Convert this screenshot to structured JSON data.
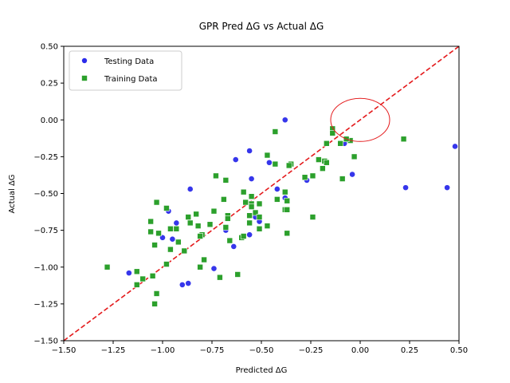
{
  "chart_data": {
    "type": "scatter",
    "title": "GPR Pred ΔG vs Actual ΔG",
    "xlabel": "Predicted ΔG",
    "ylabel": "Actual ΔG",
    "xlim": [
      -1.5,
      0.5
    ],
    "ylim": [
      -1.5,
      0.5
    ],
    "xticks": [
      "-1.50",
      "-1.25",
      "-1.00",
      "-0.75",
      "-0.50",
      "-0.25",
      "0.00",
      "0.25",
      "0.50"
    ],
    "yticks": [
      "-1.50",
      "-1.25",
      "-1.00",
      "-0.75",
      "-0.50",
      "-0.25",
      "0.00",
      "0.25",
      "0.50"
    ],
    "grid": false,
    "legend_position": "top-left",
    "series": [
      {
        "name": "Testing Data",
        "marker": "circle",
        "color": "#2b2bea",
        "points": [
          [
            -0.38,
            0.0
          ],
          [
            -0.46,
            -0.29
          ],
          [
            -0.56,
            -0.21
          ],
          [
            -0.63,
            -0.27
          ],
          [
            -0.55,
            -0.4
          ],
          [
            -0.42,
            -0.47
          ],
          [
            -0.27,
            -0.41
          ],
          [
            -0.08,
            -0.16
          ],
          [
            -0.04,
            -0.37
          ],
          [
            0.48,
            -0.18
          ],
          [
            0.23,
            -0.46
          ],
          [
            0.44,
            -0.46
          ],
          [
            -0.38,
            -0.53
          ],
          [
            -0.53,
            -0.66
          ],
          [
            -0.51,
            -0.69
          ],
          [
            -0.56,
            -0.78
          ],
          [
            -0.68,
            -0.75
          ],
          [
            -0.64,
            -0.86
          ],
          [
            -0.74,
            -1.01
          ],
          [
            -0.86,
            -0.47
          ],
          [
            -0.97,
            -0.62
          ],
          [
            -0.93,
            -0.7
          ],
          [
            -1.0,
            -0.8
          ],
          [
            -0.95,
            -0.81
          ],
          [
            -0.9,
            -1.12
          ],
          [
            -0.87,
            -1.11
          ],
          [
            -1.17,
            -1.04
          ]
        ]
      },
      {
        "name": "Training Data",
        "marker": "square",
        "color": "#2ca02c",
        "points": [
          [
            -0.43,
            -0.08
          ],
          [
            -0.14,
            -0.06
          ],
          [
            -0.14,
            -0.09
          ],
          [
            -0.1,
            -0.16
          ],
          [
            -0.17,
            -0.16
          ],
          [
            -0.05,
            -0.14
          ],
          [
            -0.07,
            -0.13
          ],
          [
            0.22,
            -0.13
          ],
          [
            -0.03,
            -0.25
          ],
          [
            -0.21,
            -0.27
          ],
          [
            -0.18,
            -0.28
          ],
          [
            -0.17,
            -0.29
          ],
          [
            -0.19,
            -0.33
          ],
          [
            -0.24,
            -0.38
          ],
          [
            -0.28,
            -0.39
          ],
          [
            -0.09,
            -0.4
          ],
          [
            -0.35,
            -0.3
          ],
          [
            -0.43,
            -0.3
          ],
          [
            -0.47,
            -0.24
          ],
          [
            -0.36,
            -0.31
          ],
          [
            -0.73,
            -0.38
          ],
          [
            -0.68,
            -0.41
          ],
          [
            -0.59,
            -0.49
          ],
          [
            -0.55,
            -0.52
          ],
          [
            -0.38,
            -0.49
          ],
          [
            -0.42,
            -0.54
          ],
          [
            -0.37,
            -0.55
          ],
          [
            -0.38,
            -0.61
          ],
          [
            -0.37,
            -0.61
          ],
          [
            -0.51,
            -0.57
          ],
          [
            -0.55,
            -0.57
          ],
          [
            -0.58,
            -0.56
          ],
          [
            -0.55,
            -0.59
          ],
          [
            -0.53,
            -0.63
          ],
          [
            -0.51,
            -0.66
          ],
          [
            -0.56,
            -0.65
          ],
          [
            -0.51,
            -0.74
          ],
          [
            -0.47,
            -0.72
          ],
          [
            -0.56,
            -0.7
          ],
          [
            -0.6,
            -0.8
          ],
          [
            -0.59,
            -0.79
          ],
          [
            -0.62,
            -1.05
          ],
          [
            -0.24,
            -0.66
          ],
          [
            -0.37,
            -0.77
          ],
          [
            -0.69,
            -0.54
          ],
          [
            -0.67,
            -0.65
          ],
          [
            -0.67,
            -0.67
          ],
          [
            -0.68,
            -0.73
          ],
          [
            -0.66,
            -0.82
          ],
          [
            -0.74,
            -0.62
          ],
          [
            -0.76,
            -0.71
          ],
          [
            -0.83,
            -0.64
          ],
          [
            -0.82,
            -0.72
          ],
          [
            -0.87,
            -0.66
          ],
          [
            -0.86,
            -0.7
          ],
          [
            -0.8,
            -0.78
          ],
          [
            -0.81,
            -0.79
          ],
          [
            -0.79,
            -0.95
          ],
          [
            -0.81,
            -1.0
          ],
          [
            -0.71,
            -1.07
          ],
          [
            -0.98,
            -0.6
          ],
          [
            -1.03,
            -0.56
          ],
          [
            -1.06,
            -0.69
          ],
          [
            -1.06,
            -0.76
          ],
          [
            -0.93,
            -0.74
          ],
          [
            -0.96,
            -0.74
          ],
          [
            -1.02,
            -0.77
          ],
          [
            -0.92,
            -0.83
          ],
          [
            -0.96,
            -0.88
          ],
          [
            -0.89,
            -0.89
          ],
          [
            -1.04,
            -0.85
          ],
          [
            -0.98,
            -0.98
          ],
          [
            -1.28,
            -1.0
          ],
          [
            -1.13,
            -1.03
          ],
          [
            -1.1,
            -1.08
          ],
          [
            -1.05,
            -1.06
          ],
          [
            -1.13,
            -1.12
          ],
          [
            -1.03,
            -1.18
          ],
          [
            -1.04,
            -1.25
          ]
        ]
      }
    ],
    "reference_line": {
      "style": "dashed",
      "color": "#e41a1c",
      "from": [
        -1.5,
        -1.5
      ],
      "to": [
        0.5,
        0.5
      ]
    },
    "annotation_circle": {
      "color": "#e41a1c",
      "center": [
        0.0,
        0.0
      ]
    }
  }
}
